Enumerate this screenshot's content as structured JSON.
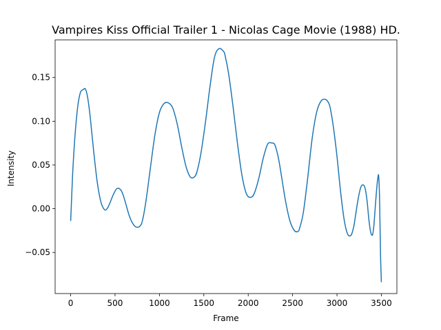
{
  "chart_data": {
    "type": "line",
    "title": "Vampires Kiss Official Trailer 1 - Nicolas Cage Movie (1988) HD.",
    "xlabel": "Frame",
    "ylabel": "Intensity",
    "xlim": [
      -175,
      3675
    ],
    "ylim": [
      -0.097,
      0.193
    ],
    "xticks": [
      0,
      500,
      1000,
      1500,
      2000,
      2500,
      3000,
      3500
    ],
    "xtick_labels": [
      "0",
      "500",
      "1000",
      "1500",
      "2000",
      "2500",
      "3000",
      "3500"
    ],
    "yticks": [
      -0.05,
      0.0,
      0.05,
      0.1,
      0.15
    ],
    "ytick_labels": [
      "−0.05",
      "0.00",
      "0.05",
      "0.10",
      "0.15"
    ],
    "grid": false,
    "line_color": "#1f77b4",
    "series": [
      {
        "x": [
          0,
          10,
          25,
          50,
          80,
          110,
          140,
          165,
          190,
          220,
          260,
          300,
          340,
          380,
          410,
          440,
          480,
          520,
          560,
          590,
          620,
          660,
          700,
          740,
          780,
          810,
          850,
          900,
          950,
          1000,
          1050,
          1100,
          1150,
          1200,
          1250,
          1300,
          1350,
          1400,
          1430,
          1470,
          1520,
          1570,
          1620,
          1670,
          1720,
          1740,
          1780,
          1830,
          1880,
          1930,
          1980,
          2030,
          2070,
          2120,
          2170,
          2220,
          2270,
          2300,
          2340,
          2380,
          2420,
          2470,
          2520,
          2560,
          2580,
          2620,
          2670,
          2720,
          2770,
          2820,
          2870,
          2910,
          2930,
          2960,
          3000,
          3040,
          3080,
          3120,
          3160,
          3190,
          3210,
          3240,
          3270,
          3300,
          3320,
          3340,
          3360,
          3380,
          3400,
          3415,
          3430,
          3445,
          3460,
          3470,
          3480,
          3490,
          3500
        ],
        "y": [
          -0.014,
          0.01,
          0.045,
          0.085,
          0.117,
          0.133,
          0.136,
          0.137,
          0.128,
          0.105,
          0.065,
          0.03,
          0.008,
          -0.001,
          0.0,
          0.006,
          0.016,
          0.023,
          0.022,
          0.016,
          0.006,
          -0.008,
          -0.017,
          -0.021,
          -0.02,
          -0.013,
          0.01,
          0.048,
          0.085,
          0.11,
          0.12,
          0.121,
          0.115,
          0.097,
          0.071,
          0.048,
          0.036,
          0.037,
          0.045,
          0.065,
          0.1,
          0.14,
          0.173,
          0.183,
          0.18,
          0.175,
          0.154,
          0.116,
          0.074,
          0.038,
          0.017,
          0.013,
          0.018,
          0.035,
          0.058,
          0.074,
          0.075,
          0.073,
          0.058,
          0.034,
          0.009,
          -0.014,
          -0.025,
          -0.026,
          -0.022,
          -0.005,
          0.035,
          0.08,
          0.11,
          0.123,
          0.125,
          0.12,
          0.112,
          0.093,
          0.06,
          0.02,
          -0.012,
          -0.029,
          -0.03,
          -0.02,
          -0.007,
          0.012,
          0.025,
          0.027,
          0.022,
          0.008,
          -0.013,
          -0.027,
          -0.03,
          -0.02,
          0.0,
          0.02,
          0.035,
          0.037,
          0.01,
          -0.05,
          -0.084
        ]
      }
    ]
  }
}
